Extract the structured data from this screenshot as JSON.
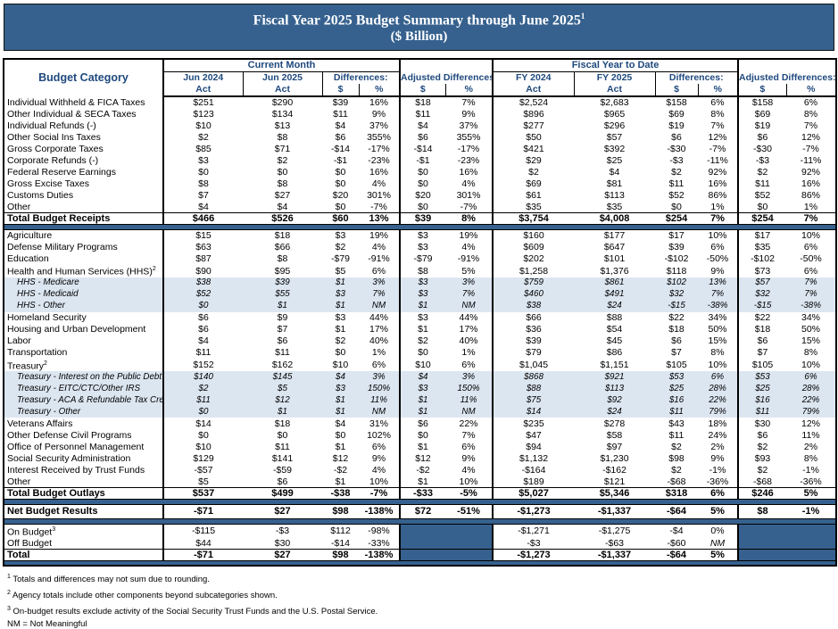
{
  "title": {
    "line1": "Fiscal Year 2025 Budget Summary through June 2025",
    "sup": "1",
    "line2": "($ Billion)"
  },
  "header": {
    "budget_category": "Budget Category",
    "current_month": "Current Month",
    "fiscal_ytd": "Fiscal Year to Date",
    "differences": "Differences:",
    "adjusted": "Adjusted Differences:",
    "col1": "Jun 2024",
    "col2": "Jun 2025",
    "fy1": "FY 2024",
    "fy2": "FY 2025",
    "act": "Act",
    "dollar": "$",
    "pct": "%"
  },
  "colors": {
    "accent_blue": "#36618e",
    "header_text_blue": "#1f497d",
    "subrow_bg": "#dce6f1"
  },
  "table": {
    "receipts": [
      {
        "label": "Individual Withheld & FICA Taxes",
        "values": [
          "$251",
          "$290",
          "$39",
          "16%",
          "$18",
          "7%",
          "$2,524",
          "$2,683",
          "$158",
          "6%",
          "$158",
          "6%"
        ]
      },
      {
        "label": "Other Individual & SECA Taxes",
        "values": [
          "$123",
          "$134",
          "$11",
          "9%",
          "$11",
          "9%",
          "$896",
          "$965",
          "$69",
          "8%",
          "$69",
          "8%"
        ]
      },
      {
        "label": "Individual Refunds (-)",
        "values": [
          "$10",
          "$13",
          "$4",
          "37%",
          "$4",
          "37%",
          "$277",
          "$296",
          "$19",
          "7%",
          "$19",
          "7%"
        ]
      },
      {
        "label": "Other Social Ins Taxes",
        "values": [
          "$2",
          "$8",
          "$6",
          "355%",
          "$6",
          "355%",
          "$50",
          "$57",
          "$6",
          "12%",
          "$6",
          "12%"
        ]
      },
      {
        "label": "Gross Corporate Taxes",
        "values": [
          "$85",
          "$71",
          "-$14",
          "-17%",
          "-$14",
          "-17%",
          "$421",
          "$392",
          "-$30",
          "-7%",
          "-$30",
          "-7%"
        ]
      },
      {
        "label": "Corporate Refunds (-)",
        "values": [
          "$3",
          "$2",
          "-$1",
          "-23%",
          "-$1",
          "-23%",
          "$29",
          "$25",
          "-$3",
          "-11%",
          "-$3",
          "-11%"
        ]
      },
      {
        "label": "Federal Reserve Earnings",
        "values": [
          "$0",
          "$0",
          "$0",
          "16%",
          "$0",
          "16%",
          "$2",
          "$4",
          "$2",
          "92%",
          "$2",
          "92%"
        ]
      },
      {
        "label": "Gross Excise Taxes",
        "values": [
          "$8",
          "$8",
          "$0",
          "4%",
          "$0",
          "4%",
          "$69",
          "$81",
          "$11",
          "16%",
          "$11",
          "16%"
        ]
      },
      {
        "label": "Customs Duties",
        "values": [
          "$7",
          "$27",
          "$20",
          "301%",
          "$20",
          "301%",
          "$61",
          "$113",
          "$52",
          "86%",
          "$52",
          "86%"
        ]
      },
      {
        "label": "Other",
        "values": [
          "$4",
          "$4",
          "$0",
          "-7%",
          "$0",
          "-7%",
          "$35",
          "$35",
          "$0",
          "1%",
          "$0",
          "1%"
        ]
      },
      {
        "label": "Total Budget Receipts",
        "style": "total",
        "values": [
          "$466",
          "$526",
          "$60",
          "13%",
          "$39",
          "8%",
          "$3,754",
          "$4,008",
          "$254",
          "7%",
          "$254",
          "7%"
        ]
      }
    ],
    "outlays": [
      {
        "label": "Agriculture",
        "values": [
          "$15",
          "$18",
          "$3",
          "19%",
          "$3",
          "19%",
          "$160",
          "$177",
          "$17",
          "10%",
          "$17",
          "10%"
        ]
      },
      {
        "label": "Defense Military Programs",
        "values": [
          "$63",
          "$66",
          "$2",
          "4%",
          "$3",
          "4%",
          "$609",
          "$647",
          "$39",
          "6%",
          "$35",
          "6%"
        ]
      },
      {
        "label": "Education",
        "values": [
          "$87",
          "$8",
          "-$79",
          "-91%",
          "-$79",
          "-91%",
          "$202",
          "$101",
          "-$102",
          "-50%",
          "-$102",
          "-50%"
        ]
      },
      {
        "label": "Health and Human Services (HHS)",
        "sup": "2",
        "values": [
          "$90",
          "$95",
          "$5",
          "6%",
          "$8",
          "5%",
          "$1,258",
          "$1,376",
          "$118",
          "9%",
          "$73",
          "6%"
        ]
      },
      {
        "label": "HHS - Medicare",
        "style": "sub",
        "values": [
          "$38",
          "$39",
          "$1",
          "3%",
          "$3",
          "3%",
          "$759",
          "$861",
          "$102",
          "13%",
          "$57",
          "7%"
        ]
      },
      {
        "label": "HHS - Medicaid",
        "style": "sub",
        "values": [
          "$52",
          "$55",
          "$3",
          "7%",
          "$3",
          "7%",
          "$460",
          "$491",
          "$32",
          "7%",
          "$32",
          "7%"
        ]
      },
      {
        "label": "HHS - Other",
        "style": "sub",
        "values": [
          "$0",
          "$1",
          "$1",
          "NM",
          "$1",
          "NM",
          "$38",
          "$24",
          "-$15",
          "-38%",
          "-$15",
          "-38%"
        ]
      },
      {
        "label": "Homeland Security",
        "values": [
          "$6",
          "$9",
          "$3",
          "44%",
          "$3",
          "44%",
          "$66",
          "$88",
          "$22",
          "34%",
          "$22",
          "34%"
        ]
      },
      {
        "label": "Housing and Urban Development",
        "values": [
          "$6",
          "$7",
          "$1",
          "17%",
          "$1",
          "17%",
          "$36",
          "$54",
          "$18",
          "50%",
          "$18",
          "50%"
        ]
      },
      {
        "label": "Labor",
        "values": [
          "$4",
          "$6",
          "$2",
          "40%",
          "$2",
          "40%",
          "$39",
          "$45",
          "$6",
          "15%",
          "$6",
          "15%"
        ]
      },
      {
        "label": "Transportation",
        "values": [
          "$11",
          "$11",
          "$0",
          "1%",
          "$0",
          "1%",
          "$79",
          "$86",
          "$7",
          "8%",
          "$7",
          "8%"
        ]
      },
      {
        "label": "Treasury",
        "sup": "2",
        "values": [
          "$152",
          "$162",
          "$10",
          "6%",
          "$10",
          "6%",
          "$1,045",
          "$1,151",
          "$105",
          "10%",
          "$105",
          "10%"
        ]
      },
      {
        "label": "Treasury - Interest on the Public Debt",
        "style": "sub",
        "values": [
          "$140",
          "$145",
          "$4",
          "3%",
          "$4",
          "3%",
          "$868",
          "$921",
          "$53",
          "6%",
          "$53",
          "6%"
        ]
      },
      {
        "label": "Treasury - EITC/CTC/Other IRS",
        "style": "sub",
        "values": [
          "$2",
          "$5",
          "$3",
          "150%",
          "$3",
          "150%",
          "$88",
          "$113",
          "$25",
          "28%",
          "$25",
          "28%"
        ]
      },
      {
        "label": "Treasury - ACA & Refundable Tax Credits",
        "style": "sub",
        "values": [
          "$11",
          "$12",
          "$1",
          "11%",
          "$1",
          "11%",
          "$75",
          "$92",
          "$16",
          "22%",
          "$16",
          "22%"
        ]
      },
      {
        "label": "Treasury - Other",
        "style": "sub",
        "values": [
          "$0",
          "$1",
          "$1",
          "NM",
          "$1",
          "NM",
          "$14",
          "$24",
          "$11",
          "79%",
          "$11",
          "79%"
        ]
      },
      {
        "label": "Veterans Affairs",
        "values": [
          "$14",
          "$18",
          "$4",
          "31%",
          "$6",
          "22%",
          "$235",
          "$278",
          "$43",
          "18%",
          "$30",
          "12%"
        ]
      },
      {
        "label": "Other Defense Civil Programs",
        "values": [
          "$0",
          "$0",
          "$0",
          "102%",
          "$0",
          "7%",
          "$47",
          "$58",
          "$11",
          "24%",
          "$6",
          "11%"
        ]
      },
      {
        "label": "Office of Personnel Management",
        "values": [
          "$10",
          "$11",
          "$1",
          "6%",
          "$1",
          "6%",
          "$94",
          "$97",
          "$2",
          "2%",
          "$2",
          "2%"
        ]
      },
      {
        "label": "Social Security Administration",
        "values": [
          "$129",
          "$141",
          "$12",
          "9%",
          "$12",
          "9%",
          "$1,132",
          "$1,230",
          "$98",
          "9%",
          "$93",
          "8%"
        ]
      },
      {
        "label": "Interest Received by Trust Funds",
        "values": [
          "-$57",
          "-$59",
          "-$2",
          "4%",
          "-$2",
          "4%",
          "-$164",
          "-$162",
          "$2",
          "-1%",
          "$2",
          "-1%"
        ]
      },
      {
        "label": "Other",
        "values": [
          "$5",
          "$6",
          "$1",
          "10%",
          "$1",
          "10%",
          "$189",
          "$121",
          "-$68",
          "-36%",
          "-$68",
          "-36%"
        ]
      },
      {
        "label": "Total Budget Outlays",
        "style": "total",
        "values": [
          "$537",
          "$499",
          "-$38",
          "-7%",
          "-$33",
          "-5%",
          "$5,027",
          "$5,346",
          "$318",
          "6%",
          "$246",
          "5%"
        ]
      }
    ],
    "net": {
      "label": "Net Budget Results",
      "values": [
        "-$71",
        "$27",
        "$98",
        "-138%",
        "$72",
        "-51%",
        "-$1,273",
        "-$1,337",
        "-$64",
        "5%",
        "$8",
        "-1%"
      ]
    },
    "budget_split": [
      {
        "label": "On Budget",
        "sup": "3",
        "values": [
          "-$115",
          "-$3",
          "$112",
          "-98%",
          "-$1,271",
          "-$1,275",
          "-$4",
          "0%"
        ]
      },
      {
        "label": "Off Budget",
        "values": [
          "$44",
          "$30",
          "-$14",
          "-33%",
          "-$3",
          "-$63",
          "-$60",
          "NM"
        ]
      },
      {
        "label": "Total",
        "style": "total",
        "values": [
          "-$71",
          "$27",
          "$98",
          "-138%",
          "-$1,273",
          "-$1,337",
          "-$64",
          "5%"
        ]
      }
    ]
  },
  "footnotes": [
    {
      "sup": "1",
      "text": "Totals and differences may not sum due to rounding."
    },
    {
      "sup": "2",
      "text": "Agency totals include other components beyond subcategories shown."
    },
    {
      "sup": "3",
      "text": "On-budget results exclude activity of the Social Security Trust Funds and the U.S. Postal Service."
    },
    {
      "sup": "",
      "text": "NM = Not Meaningful"
    }
  ]
}
